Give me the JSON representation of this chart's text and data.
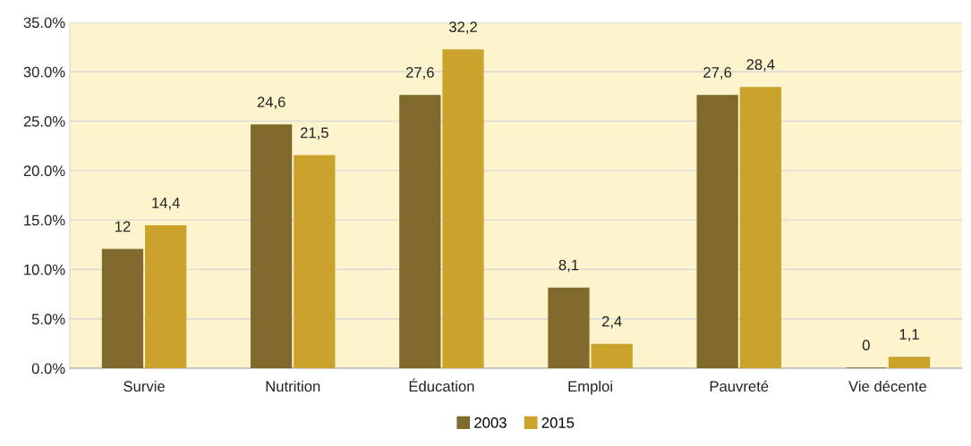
{
  "chart_data": {
    "type": "bar",
    "categories": [
      "Survie",
      "Nutrition",
      "Éducation",
      "Emploi",
      "Pauvreté",
      "Vie décente"
    ],
    "series": [
      {
        "name": "2003",
        "color": "#7f6a2c",
        "values": [
          12,
          24.6,
          27.6,
          8.1,
          27.6,
          0
        ],
        "value_labels": [
          "12",
          "24,6",
          "27,6",
          "8,1",
          "27,6",
          "0"
        ]
      },
      {
        "name": "2015",
        "color": "#caa22c",
        "values": [
          14.4,
          21.5,
          32.2,
          2.4,
          28.4,
          1.1
        ],
        "value_labels": [
          "14,4",
          "21,5",
          "32,2",
          "2,4",
          "28,4",
          "1,1"
        ]
      }
    ],
    "ylim": [
      0,
      35
    ],
    "yticks": [
      {
        "value": 0,
        "label": "0.0%"
      },
      {
        "value": 5,
        "label": "5.0%"
      },
      {
        "value": 10,
        "label": "10.0%"
      },
      {
        "value": 15,
        "label": "15.0%"
      },
      {
        "value": 20,
        "label": "20.0%"
      },
      {
        "value": 25,
        "label": "25.0%"
      },
      {
        "value": 30,
        "label": "30.0%"
      },
      {
        "value": 35,
        "label": "35.0%"
      }
    ],
    "grid": "y",
    "legend": "bottom"
  }
}
